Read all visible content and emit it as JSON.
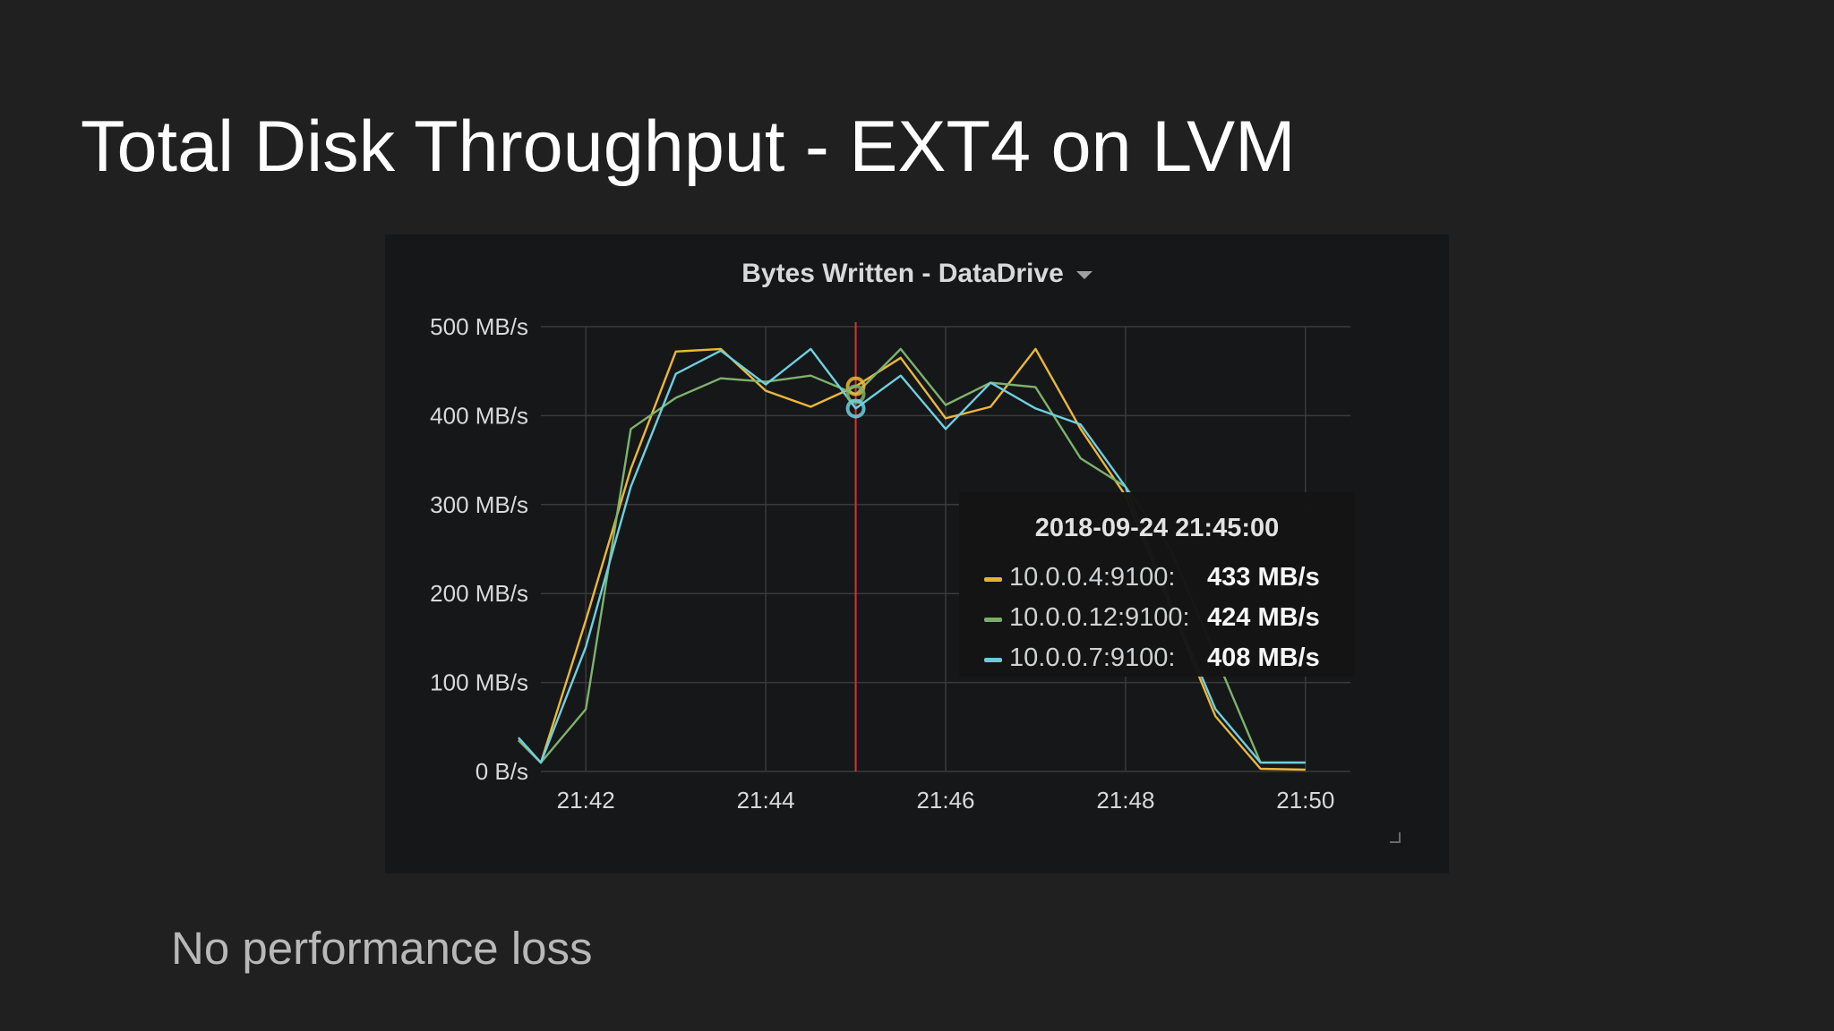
{
  "slide": {
    "title": "Total Disk Throughput - EXT4 on LVM",
    "subtitle": "No performance loss"
  },
  "panel": {
    "title": "Bytes Written - DataDrive",
    "menu_icon": "caret-down-icon"
  },
  "tooltip": {
    "time": "2018-09-24 21:45:00",
    "rows": [
      {
        "name": "10.0.0.4:9100:",
        "value": "433 MB/s",
        "color": "#eab839"
      },
      {
        "name": "10.0.0.12:9100:",
        "value": "424 MB/s",
        "color": "#7eb26d"
      },
      {
        "name": "10.0.0.7:9100:",
        "value": "408 MB/s",
        "color": "#6ed0e0"
      }
    ]
  },
  "chart_data": {
    "type": "line",
    "title": "Bytes Written - DataDrive",
    "xlabel": "",
    "ylabel": "",
    "x_ticks": [
      "21:42",
      "21:44",
      "21:46",
      "21:48",
      "21:50"
    ],
    "y_ticks": [
      "0 B/s",
      "100 MB/s",
      "200 MB/s",
      "300 MB/s",
      "400 MB/s",
      "500 MB/s"
    ],
    "ylim": [
      0,
      500
    ],
    "xlim": [
      "21:41:30",
      "21:50:30"
    ],
    "grid": true,
    "cursor_time": "21:45:00",
    "cursor_color": "#e02f2f",
    "series": [
      {
        "name": "10.0.0.4:9100",
        "color": "#eab839",
        "points": [
          [
            "21:41:15",
            35
          ],
          [
            "21:41:30",
            10
          ],
          [
            "21:42:00",
            170
          ],
          [
            "21:42:30",
            340
          ],
          [
            "21:43:00",
            472
          ],
          [
            "21:43:30",
            475
          ],
          [
            "21:44:00",
            428
          ],
          [
            "21:44:30",
            410
          ],
          [
            "21:45:00",
            433
          ],
          [
            "21:45:30",
            465
          ],
          [
            "21:46:00",
            397
          ],
          [
            "21:46:30",
            410
          ],
          [
            "21:47:00",
            475
          ],
          [
            "21:47:30",
            385
          ],
          [
            "21:48:00",
            310
          ],
          [
            "21:48:30",
            185
          ],
          [
            "21:49:00",
            62
          ],
          [
            "21:49:30",
            3
          ],
          [
            "21:50:00",
            2
          ]
        ]
      },
      {
        "name": "10.0.0.12:9100",
        "color": "#7eb26d",
        "points": [
          [
            "21:41:15",
            35
          ],
          [
            "21:41:30",
            10
          ],
          [
            "21:42:00",
            70
          ],
          [
            "21:42:30",
            385
          ],
          [
            "21:43:00",
            420
          ],
          [
            "21:43:30",
            442
          ],
          [
            "21:44:00",
            438
          ],
          [
            "21:44:30",
            445
          ],
          [
            "21:45:00",
            424
          ],
          [
            "21:45:30",
            475
          ],
          [
            "21:46:00",
            412
          ],
          [
            "21:46:30",
            437
          ],
          [
            "21:47:00",
            432
          ],
          [
            "21:47:30",
            352
          ],
          [
            "21:48:00",
            320
          ],
          [
            "21:48:30",
            250
          ],
          [
            "21:49:00",
            130
          ],
          [
            "21:49:30",
            10
          ],
          [
            "21:50:00",
            10
          ]
        ]
      },
      {
        "name": "10.0.0.7:9100",
        "color": "#6ed0e0",
        "points": [
          [
            "21:41:15",
            38
          ],
          [
            "21:41:30",
            10
          ],
          [
            "21:42:00",
            140
          ],
          [
            "21:42:30",
            320
          ],
          [
            "21:43:00",
            447
          ],
          [
            "21:43:30",
            473
          ],
          [
            "21:44:00",
            435
          ],
          [
            "21:44:30",
            475
          ],
          [
            "21:45:00",
            408
          ],
          [
            "21:45:30",
            445
          ],
          [
            "21:46:00",
            385
          ],
          [
            "21:46:30",
            437
          ],
          [
            "21:47:00",
            408
          ],
          [
            "21:47:30",
            390
          ],
          [
            "21:48:00",
            320
          ],
          [
            "21:48:30",
            190
          ],
          [
            "21:49:00",
            70
          ],
          [
            "21:49:30",
            10
          ],
          [
            "21:50:00",
            10
          ]
        ]
      }
    ]
  }
}
